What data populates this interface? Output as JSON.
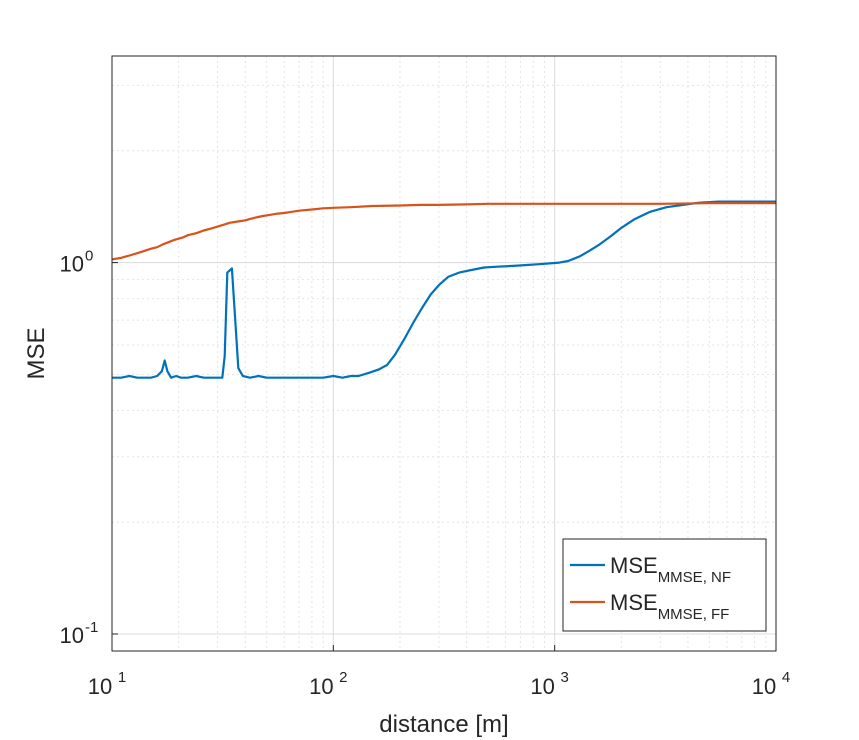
{
  "chart_data": {
    "type": "line",
    "title": "",
    "xlabel": "distance [m]",
    "ylabel": "MSE",
    "xscale": "log",
    "yscale": "log",
    "xlim": [
      10,
      10000
    ],
    "ylim": [
      0.09,
      3.6
    ],
    "grid": true,
    "minor_grid": true,
    "x_ticks": [
      {
        "value": 10,
        "base": "10",
        "exp": "1"
      },
      {
        "value": 100,
        "base": "10",
        "exp": "2"
      },
      {
        "value": 1000,
        "base": "10",
        "exp": "3"
      },
      {
        "value": 10000,
        "base": "10",
        "exp": "4"
      }
    ],
    "y_ticks": [
      {
        "value": 0.1,
        "base": "10",
        "exp": "-1"
      },
      {
        "value": 1,
        "base": "10",
        "exp": "0"
      }
    ],
    "legend_position": "bottom-right",
    "series": [
      {
        "name": "MSE",
        "subscript": "MMSE, NF",
        "color": "#0072BD",
        "points": [
          [
            10,
            0.49
          ],
          [
            11,
            0.49
          ],
          [
            12,
            0.495
          ],
          [
            13,
            0.49
          ],
          [
            14,
            0.49
          ],
          [
            15,
            0.49
          ],
          [
            16,
            0.495
          ],
          [
            16.8,
            0.51
          ],
          [
            17.3,
            0.545
          ],
          [
            17.8,
            0.51
          ],
          [
            18.5,
            0.49
          ],
          [
            19.5,
            0.495
          ],
          [
            20.5,
            0.49
          ],
          [
            22,
            0.49
          ],
          [
            24,
            0.495
          ],
          [
            26,
            0.49
          ],
          [
            28,
            0.49
          ],
          [
            30,
            0.49
          ],
          [
            31.5,
            0.49
          ],
          [
            32.3,
            0.56
          ],
          [
            33.2,
            0.94
          ],
          [
            34.8,
            0.965
          ],
          [
            36.2,
            0.67
          ],
          [
            37.2,
            0.52
          ],
          [
            39,
            0.495
          ],
          [
            42,
            0.49
          ],
          [
            46,
            0.495
          ],
          [
            50,
            0.49
          ],
          [
            55,
            0.49
          ],
          [
            60,
            0.49
          ],
          [
            65,
            0.49
          ],
          [
            70,
            0.49
          ],
          [
            80,
            0.49
          ],
          [
            90,
            0.49
          ],
          [
            100,
            0.495
          ],
          [
            110,
            0.49
          ],
          [
            120,
            0.495
          ],
          [
            130,
            0.495
          ],
          [
            145,
            0.505
          ],
          [
            160,
            0.515
          ],
          [
            175,
            0.53
          ],
          [
            190,
            0.565
          ],
          [
            210,
            0.625
          ],
          [
            230,
            0.69
          ],
          [
            250,
            0.75
          ],
          [
            275,
            0.82
          ],
          [
            300,
            0.87
          ],
          [
            330,
            0.915
          ],
          [
            370,
            0.94
          ],
          [
            420,
            0.955
          ],
          [
            480,
            0.97
          ],
          [
            550,
            0.975
          ],
          [
            650,
            0.98
          ],
          [
            750,
            0.985
          ],
          [
            850,
            0.99
          ],
          [
            950,
            0.995
          ],
          [
            1050,
            1.0
          ],
          [
            1150,
            1.01
          ],
          [
            1300,
            1.04
          ],
          [
            1450,
            1.08
          ],
          [
            1600,
            1.12
          ],
          [
            1800,
            1.18
          ],
          [
            2000,
            1.24
          ],
          [
            2300,
            1.31
          ],
          [
            2700,
            1.37
          ],
          [
            3200,
            1.41
          ],
          [
            3800,
            1.43
          ],
          [
            4500,
            1.45
          ],
          [
            5500,
            1.46
          ],
          [
            7000,
            1.46
          ],
          [
            8500,
            1.46
          ],
          [
            10000,
            1.46
          ]
        ]
      },
      {
        "name": "MSE",
        "subscript": "MMSE, FF",
        "color": "#D95319",
        "points": [
          [
            10,
            1.02
          ],
          [
            11,
            1.03
          ],
          [
            12,
            1.045
          ],
          [
            13,
            1.06
          ],
          [
            14,
            1.075
          ],
          [
            15,
            1.09
          ],
          [
            16,
            1.1
          ],
          [
            17,
            1.12
          ],
          [
            18,
            1.135
          ],
          [
            19,
            1.15
          ],
          [
            20,
            1.16
          ],
          [
            21,
            1.17
          ],
          [
            22,
            1.185
          ],
          [
            24,
            1.2
          ],
          [
            26,
            1.22
          ],
          [
            28,
            1.235
          ],
          [
            30,
            1.25
          ],
          [
            32,
            1.265
          ],
          [
            34,
            1.28
          ],
          [
            37,
            1.29
          ],
          [
            40,
            1.3
          ],
          [
            44,
            1.32
          ],
          [
            48,
            1.335
          ],
          [
            52,
            1.345
          ],
          [
            56,
            1.355
          ],
          [
            60,
            1.36
          ],
          [
            65,
            1.37
          ],
          [
            70,
            1.38
          ],
          [
            80,
            1.39
          ],
          [
            90,
            1.4
          ],
          [
            100,
            1.405
          ],
          [
            120,
            1.41
          ],
          [
            150,
            1.42
          ],
          [
            200,
            1.425
          ],
          [
            250,
            1.43
          ],
          [
            300,
            1.43
          ],
          [
            400,
            1.435
          ],
          [
            500,
            1.44
          ],
          [
            700,
            1.44
          ],
          [
            1000,
            1.44
          ],
          [
            1500,
            1.44
          ],
          [
            2000,
            1.44
          ],
          [
            3000,
            1.44
          ],
          [
            5000,
            1.445
          ],
          [
            7000,
            1.445
          ],
          [
            10000,
            1.445
          ]
        ]
      }
    ]
  }
}
